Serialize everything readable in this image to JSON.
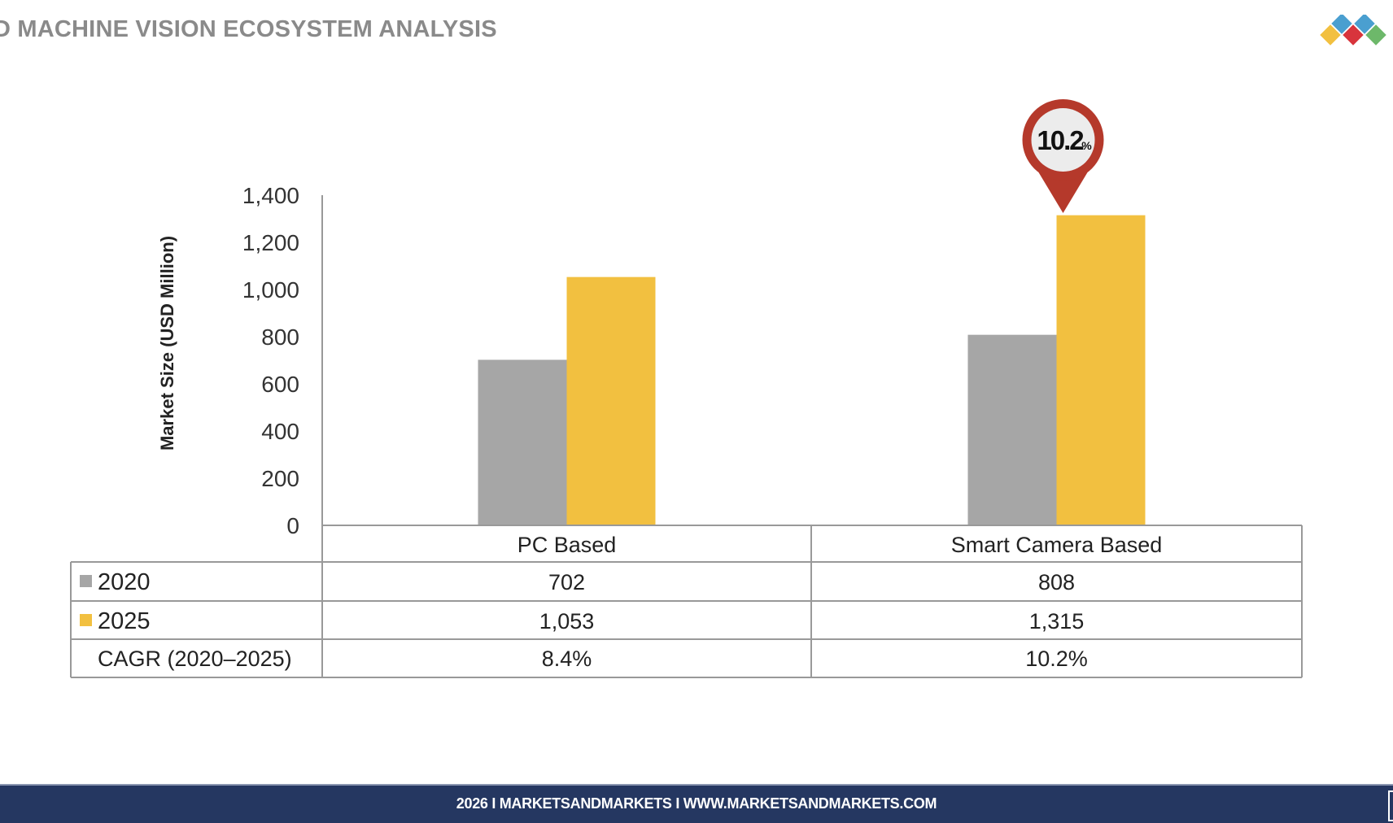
{
  "header": {
    "title": "D MACHINE VISION ECOSYSTEM ANALYSIS"
  },
  "logo": {
    "colors": [
      "#F2C040",
      "#4A9FD0",
      "#D8343C",
      "#4A9FD0",
      "#6DB86A"
    ]
  },
  "footer": {
    "text": "2026 I MARKETSANDMARKETS I WWW.MARKETSANDMARKETS.COM",
    "background": "#253761"
  },
  "chart_data": {
    "type": "bar",
    "ylabel": "Market Size (USD Million)",
    "ylim": [
      0,
      1400
    ],
    "yticks": [
      "0",
      "200",
      "400",
      "600",
      "800",
      "1,000",
      "1,200",
      "1,400"
    ],
    "yticks_values": [
      0,
      200,
      400,
      600,
      800,
      1000,
      1200,
      1400
    ],
    "categories": [
      "PC Based",
      "Smart Camera Based"
    ],
    "series": [
      {
        "name": "2020",
        "color": "#A6A6A6",
        "values": [
          702,
          808
        ],
        "labels": [
          "702",
          "808"
        ]
      },
      {
        "name": "2025",
        "color": "#F2C040",
        "values": [
          1053,
          1315
        ],
        "labels": [
          "1,053",
          "1,315"
        ]
      }
    ],
    "cagr_row": {
      "label": "CAGR (2020–2025)",
      "values": [
        "8.4%",
        "10.2%"
      ]
    },
    "annotation": {
      "text": "10.2",
      "suffix": "%",
      "category": "Smart Camera Based",
      "color": "#B5392B"
    },
    "grid": false,
    "legend": "data-table"
  }
}
